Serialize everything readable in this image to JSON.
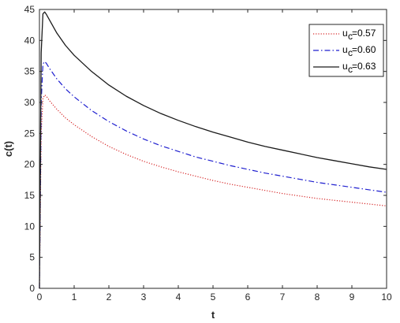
{
  "chart_data": {
    "type": "line",
    "xlabel": "t",
    "ylabel": "c(t)",
    "xlim": [
      0,
      10
    ],
    "ylim": [
      0,
      45
    ],
    "xticks": [
      0,
      1,
      2,
      3,
      4,
      5,
      6,
      7,
      8,
      9,
      10
    ],
    "yticks": [
      0,
      5,
      10,
      15,
      20,
      25,
      30,
      35,
      40,
      45
    ],
    "grid": false,
    "legend_position": "top-right",
    "series": [
      {
        "legend_base": "u",
        "legend_sub": "c",
        "legend_value": "=0.57",
        "color": "#d62728",
        "style": "dotted",
        "x": [
          0,
          0.02,
          0.05,
          0.1,
          0.15,
          0.2,
          0.3,
          0.5,
          0.75,
          1,
          1.5,
          2,
          2.5,
          3,
          3.5,
          4,
          4.5,
          5,
          5.5,
          6,
          6.5,
          7,
          7.5,
          8,
          8.5,
          9,
          9.5,
          10
        ],
        "y": [
          0,
          10,
          25,
          30.6,
          31.2,
          31,
          30.2,
          28.9,
          27.5,
          26.4,
          24.5,
          22.9,
          21.6,
          20.5,
          19.6,
          18.8,
          18.1,
          17.4,
          16.8,
          16.3,
          15.8,
          15.3,
          14.9,
          14.5,
          14.2,
          13.9,
          13.6,
          13.3
        ]
      },
      {
        "legend_base": "u",
        "legend_sub": "c",
        "legend_value": "=0.60",
        "color": "#1f1fcf",
        "style": "dashdot",
        "x": [
          0,
          0.02,
          0.05,
          0.1,
          0.15,
          0.2,
          0.3,
          0.5,
          0.75,
          1,
          1.5,
          2,
          2.5,
          3,
          3.5,
          4,
          4.5,
          5,
          5.5,
          6,
          6.5,
          7,
          7.5,
          8,
          8.5,
          9,
          9.5,
          10
        ],
        "y": [
          0,
          12,
          30,
          36.2,
          36.6,
          36.3,
          35.4,
          33.8,
          32.2,
          30.9,
          28.7,
          26.9,
          25.4,
          24.1,
          23,
          22.1,
          21.2,
          20.5,
          19.8,
          19.2,
          18.6,
          18.1,
          17.6,
          17.1,
          16.7,
          16.3,
          15.9,
          15.5
        ]
      },
      {
        "legend_base": "u",
        "legend_sub": "c",
        "legend_value": "=0.63",
        "color": "#1a1a1a",
        "style": "solid",
        "x": [
          0,
          0.02,
          0.05,
          0.1,
          0.15,
          0.2,
          0.3,
          0.5,
          0.75,
          1,
          1.5,
          2,
          2.5,
          3,
          3.5,
          4,
          4.5,
          5,
          5.5,
          6,
          6.5,
          7,
          7.5,
          8,
          8.5,
          9,
          9.5,
          10
        ],
        "y": [
          0,
          15,
          38,
          44.3,
          44.6,
          44.2,
          43.2,
          41.2,
          39.2,
          37.6,
          35,
          32.8,
          31,
          29.5,
          28.2,
          27.1,
          26.1,
          25.2,
          24.4,
          23.6,
          22.9,
          22.3,
          21.7,
          21.1,
          20.6,
          20.1,
          19.6,
          19.2
        ]
      }
    ]
  }
}
